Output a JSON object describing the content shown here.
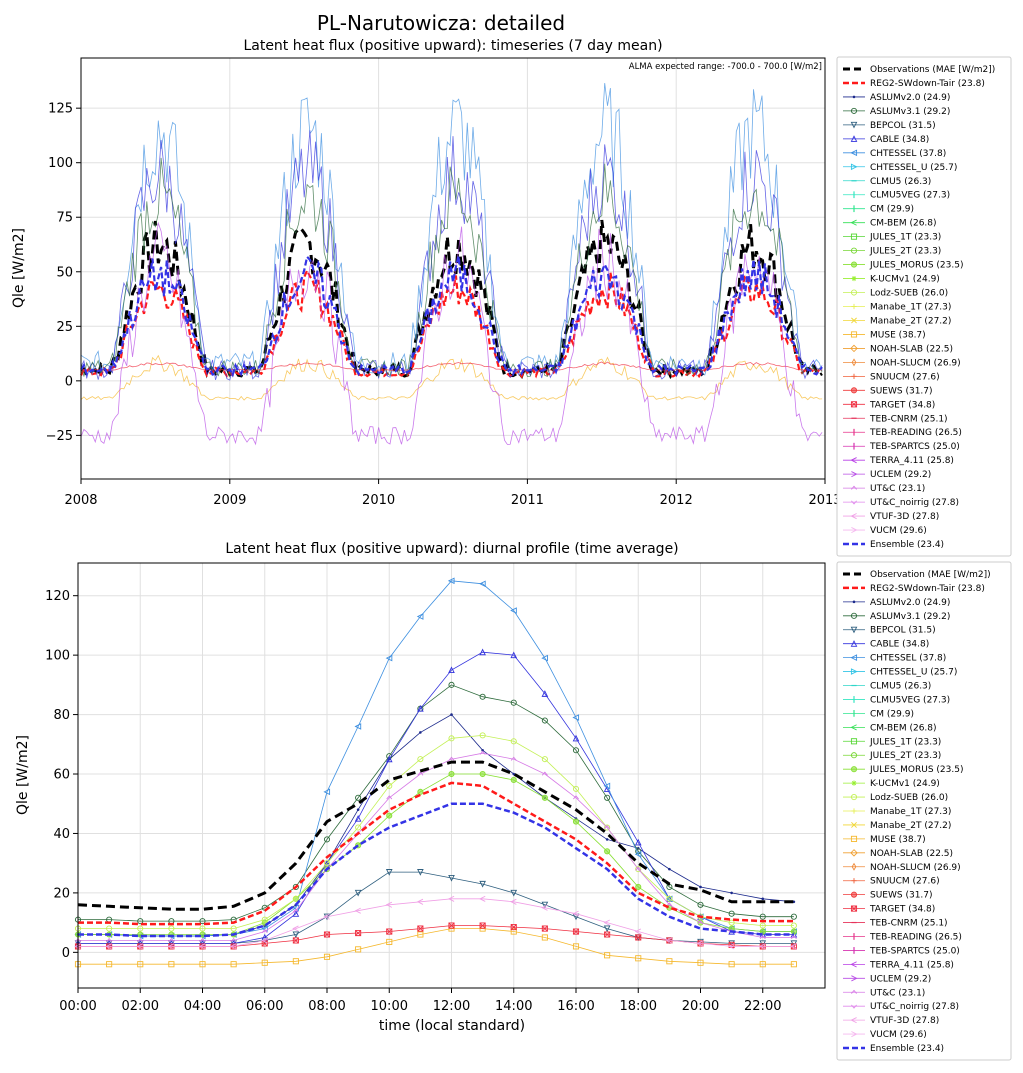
{
  "suptitle": "PL-Narutowicza: detailed",
  "chart_data": [
    {
      "type": "line",
      "title": "Latent heat flux (positive upward): timeseries (7 day mean)",
      "ylabel": "Qle [W/m2]",
      "xlabel": "",
      "annotation": "ALMA expected range: -700.0 - 700.0 [W/m2]",
      "xlim": [
        2008.0,
        2013.0
      ],
      "ylim": [
        -45,
        148
      ],
      "x_ticks": [
        2008,
        2009,
        2010,
        2011,
        2012,
        2013
      ],
      "x_tick_labels": [
        "2008",
        "2009",
        "2010",
        "2011",
        "2012",
        "2013"
      ],
      "y_ticks": [
        -25,
        0,
        25,
        50,
        75,
        100,
        125
      ],
      "grid": true,
      "legend_position": "outside-right",
      "legend_title": "Observations (MAE [W/m2])",
      "series_summary": [
        {
          "name": "Observations",
          "summer_peak": 62,
          "winter_min": 5
        },
        {
          "name": "REG2-SWdown-Tair",
          "summer_peak": 42,
          "winter_min": 4
        },
        {
          "name": "CHTESSEL",
          "summer_peak": 115,
          "winter_min": 8
        },
        {
          "name": "CABLE",
          "summer_peak": 95,
          "winter_min": 5
        },
        {
          "name": "ASLUMv3.1",
          "summer_peak": 85,
          "winter_min": 6
        },
        {
          "name": "MUSE",
          "summer_peak": 8,
          "winter_min": -8
        },
        {
          "name": "TARGET",
          "summer_peak": 8,
          "winter_min": 5
        },
        {
          "name": "UCLEM",
          "summer_peak": 55,
          "winter_min": -25
        },
        {
          "name": "Ensemble",
          "summer_peak": 48,
          "winter_min": 5
        }
      ]
    },
    {
      "type": "line",
      "title": "Latent heat flux (positive upward): diurnal profile (time average)",
      "xlabel": "time (local standard)",
      "ylabel": "Qle [W/m2]",
      "xlim": [
        0,
        24
      ],
      "ylim": [
        -12,
        131
      ],
      "x": [
        0,
        1,
        2,
        3,
        4,
        5,
        6,
        7,
        8,
        9,
        10,
        11,
        12,
        13,
        14,
        15,
        16,
        17,
        18,
        19,
        20,
        21,
        22,
        23
      ],
      "x_ticks": [
        0,
        2,
        4,
        6,
        8,
        10,
        12,
        14,
        16,
        18,
        20,
        22
      ],
      "x_tick_labels": [
        "00:00",
        "02:00",
        "04:00",
        "06:00",
        "08:00",
        "10:00",
        "12:00",
        "14:00",
        "16:00",
        "18:00",
        "20:00",
        "22:00"
      ],
      "y_ticks": [
        0,
        20,
        40,
        60,
        80,
        100,
        120
      ],
      "grid": true,
      "legend_position": "outside-right",
      "legend_title": "Observation (MAE [W/m2])",
      "series": [
        {
          "name": "Observation",
          "values": [
            16,
            15.5,
            15,
            14.5,
            14.5,
            15.5,
            20,
            30,
            44,
            50,
            58,
            61,
            64,
            64,
            60,
            54,
            48,
            40,
            30,
            23,
            21,
            17,
            17,
            17
          ]
        },
        {
          "name": "REG2-SWdown-Tair",
          "values": [
            10,
            10,
            9.5,
            9.5,
            9.5,
            10,
            14,
            22,
            32,
            40,
            48,
            53,
            57,
            56,
            50,
            44,
            38,
            30,
            20,
            15,
            12,
            11,
            10.5,
            10.5
          ]
        },
        {
          "name": "ASLUMv2.0",
          "values": [
            6,
            6,
            5.5,
            5.5,
            5.5,
            6,
            9,
            16,
            30,
            48,
            65,
            74,
            80,
            68,
            60,
            52,
            45,
            38,
            35,
            28,
            22,
            20,
            18,
            17
          ]
        },
        {
          "name": "ASLUMv3.1",
          "values": [
            11,
            11,
            10.5,
            10.5,
            10.5,
            11,
            15,
            22,
            38,
            52,
            66,
            82,
            90,
            86,
            84,
            78,
            68,
            52,
            34,
            22,
            16,
            13,
            12,
            12
          ]
        },
        {
          "name": "BEPCOL",
          "values": [
            3,
            3,
            3,
            3,
            3,
            3,
            4,
            6,
            12,
            20,
            27,
            27,
            25,
            23,
            20,
            16,
            12,
            8,
            5,
            4,
            3.5,
            3,
            3,
            3
          ]
        },
        {
          "name": "CABLE",
          "values": [
            3,
            3,
            3,
            3,
            3,
            3,
            5,
            13,
            30,
            45,
            65,
            82,
            95,
            101,
            100,
            87,
            72,
            55,
            37,
            18,
            12,
            7,
            6,
            6
          ]
        },
        {
          "name": "CHTESSEL",
          "values": [
            6,
            6,
            5.5,
            5.5,
            5.5,
            6,
            8,
            15,
            54,
            76,
            99,
            113,
            125,
            124,
            115,
            99,
            79,
            56,
            33,
            18,
            12,
            8,
            7,
            7
          ]
        },
        {
          "name": "JULES_MORUS",
          "values": [
            6,
            6,
            6,
            6,
            6,
            6,
            10,
            18,
            28,
            36,
            46,
            54,
            60,
            60,
            58,
            52,
            44,
            34,
            22,
            15,
            10,
            8,
            7,
            7
          ]
        },
        {
          "name": "Lodz-SUEB",
          "values": [
            8,
            8,
            8,
            8,
            8,
            8,
            11,
            18,
            30,
            42,
            56,
            65,
            72,
            73,
            71,
            65,
            55,
            42,
            28,
            18,
            12,
            10,
            9,
            9
          ]
        },
        {
          "name": "MUSE",
          "values": [
            -4,
            -4,
            -4,
            -4,
            -4,
            -4,
            -3.5,
            -3,
            -1.5,
            1,
            3.5,
            6,
            8,
            8,
            7,
            5,
            2,
            -1,
            -2,
            -3,
            -3.5,
            -4,
            -4,
            -4
          ]
        },
        {
          "name": "TARGET",
          "values": [
            2,
            2,
            2,
            2,
            2,
            2,
            3,
            4,
            6,
            6.5,
            7,
            8,
            9,
            9,
            8.5,
            8,
            7,
            6,
            5,
            4,
            3,
            2.5,
            2,
            2
          ]
        },
        {
          "name": "UT&C",
          "values": [
            4,
            4,
            4,
            4,
            4,
            4,
            7,
            14,
            28,
            40,
            52,
            60,
            65,
            67,
            65,
            60,
            52,
            42,
            28,
            16,
            10,
            7,
            5,
            5
          ]
        },
        {
          "name": "VTUF-3D",
          "values": [
            2,
            2,
            2,
            2,
            2,
            2,
            4,
            8,
            12,
            14,
            16,
            17,
            18,
            18,
            17,
            15,
            13,
            10,
            7,
            4,
            3,
            2,
            2,
            2
          ]
        },
        {
          "name": "Ensemble",
          "values": [
            6,
            6,
            5.5,
            5.5,
            5.5,
            6,
            9,
            16,
            28,
            36,
            42,
            46,
            50,
            50,
            47,
            42,
            35,
            28,
            18,
            12,
            8,
            7,
            6,
            6
          ]
        }
      ]
    }
  ],
  "legend_entries": [
    {
      "name": "REG2-SWdown-Tair",
      "score": "(23.8)",
      "color": "#ff1a1a",
      "marker": "none",
      "dash": "6,3"
    },
    {
      "name": "ASLUMv2.0",
      "score": "(24.9)",
      "color": "#1c2a8c",
      "marker": "dot"
    },
    {
      "name": "ASLUMv3.1",
      "score": "(29.2)",
      "color": "#2e6b3c",
      "marker": "circle"
    },
    {
      "name": "BEPCOL",
      "score": "(31.5)",
      "color": "#2f5f7f",
      "marker": "tri-down"
    },
    {
      "name": "CABLE",
      "score": "(34.8)",
      "color": "#3333dd",
      "marker": "tri-up"
    },
    {
      "name": "CHTESSEL",
      "score": "(37.8)",
      "color": "#3d8fe0",
      "marker": "tri-left"
    },
    {
      "name": "CHTESSEL_U",
      "score": "(25.7)",
      "color": "#33c4e6",
      "marker": "tri-right"
    },
    {
      "name": "CLMU5",
      "score": "(26.3)",
      "color": "#2ed6c9",
      "marker": "dash"
    },
    {
      "name": "CLMU5VEG",
      "score": "(27.3)",
      "color": "#33e6c0",
      "marker": "vline"
    },
    {
      "name": "CM",
      "score": "(29.9)",
      "color": "#2ee68f",
      "marker": "vline"
    },
    {
      "name": "CM-BEM",
      "score": "(26.8)",
      "color": "#33e055",
      "marker": "arrow-left"
    },
    {
      "name": "JULES_1T",
      "score": "(23.3)",
      "color": "#55d633",
      "marker": "square"
    },
    {
      "name": "JULES_2T",
      "score": "(23.3)",
      "color": "#77d633",
      "marker": "circle"
    },
    {
      "name": "JULES_MORUS",
      "score": "(23.5)",
      "color": "#88e033",
      "marker": "hexagon"
    },
    {
      "name": "K-UCMv1",
      "score": "(24.9)",
      "color": "#99ef33",
      "marker": "star"
    },
    {
      "name": "Lodz-SUEB",
      "score": "(26.0)",
      "color": "#c3f055",
      "marker": "circle"
    },
    {
      "name": "Manabe_1T",
      "score": "(27.3)",
      "color": "#e6ef55",
      "marker": "plus"
    },
    {
      "name": "Manabe_2T",
      "score": "(27.2)",
      "color": "#f0d633",
      "marker": "x"
    },
    {
      "name": "MUSE",
      "score": "(38.7)",
      "color": "#f5b82e",
      "marker": "square"
    },
    {
      "name": "NOAH-SLAB",
      "score": "(22.5)",
      "color": "#f0a032",
      "marker": "diamond"
    },
    {
      "name": "NOAH-SLUCM",
      "score": "(26.9)",
      "color": "#ef8a3a",
      "marker": "thin-diamond"
    },
    {
      "name": "SNUUCM",
      "score": "(27.6)",
      "color": "#f0603a",
      "marker": "plus"
    },
    {
      "name": "SUEWS",
      "score": "(31.7)",
      "color": "#ef3a3a",
      "marker": "hexagon"
    },
    {
      "name": "TARGET",
      "score": "(34.8)",
      "color": "#ef2e40",
      "marker": "square-x"
    },
    {
      "name": "TEB-CNRM",
      "score": "(25.1)",
      "color": "#e6335a",
      "marker": "dash"
    },
    {
      "name": "TEB-READING",
      "score": "(26.5)",
      "color": "#e6338a",
      "marker": "vline"
    },
    {
      "name": "TEB-SPARTCS",
      "score": "(25.0)",
      "color": "#d633b0",
      "marker": "vline"
    },
    {
      "name": "TERRA_4.11",
      "score": "(25.8)",
      "color": "#b83de6",
      "marker": "arrow-left"
    },
    {
      "name": "UCLEM",
      "score": "(29.2)",
      "color": "#b84de6",
      "marker": "arrow-right"
    },
    {
      "name": "UT&C",
      "score": "(23.1)",
      "color": "#d67ae6",
      "marker": "caret-up"
    },
    {
      "name": "UT&C_noirrig",
      "score": "(27.8)",
      "color": "#e08aec",
      "marker": "caret-down"
    },
    {
      "name": "VTUF-3D",
      "score": "(27.8)",
      "color": "#f0a0e6",
      "marker": "arrow-left"
    },
    {
      "name": "VUCM",
      "score": "(29.6)",
      "color": "#f5b8ef",
      "marker": "arrow-right"
    },
    {
      "name": "Ensemble",
      "score": "(23.4)",
      "color": "#3333e6",
      "marker": "none",
      "dash": "6,3"
    }
  ]
}
